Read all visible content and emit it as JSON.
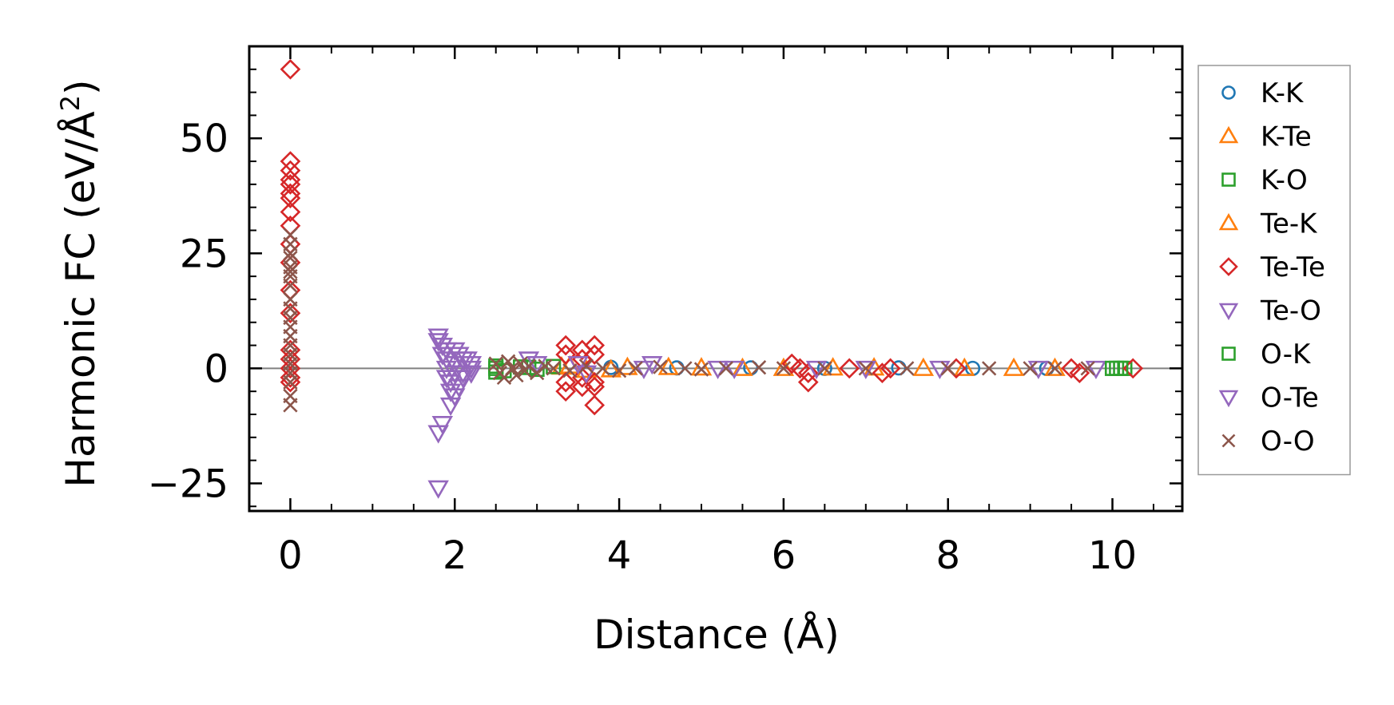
{
  "chart_data": {
    "type": "scatter",
    "title": "",
    "xlabel": "Distance (Å)",
    "ylabel_main": "Harmonic FC (eV/Å",
    "ylabel_sup": "2",
    "ylabel_close": ")",
    "xlim": [
      -0.5,
      10.85
    ],
    "ylim": [
      -31,
      70
    ],
    "xticks": [
      0,
      2,
      4,
      6,
      8,
      10
    ],
    "xtick_labels": [
      "0",
      "2",
      "4",
      "6",
      "8",
      "10"
    ],
    "yticks": [
      -25,
      0,
      25,
      50
    ],
    "ytick_labels": [
      "−25",
      "0",
      "25",
      "50"
    ],
    "zero_line": 0,
    "legend_position": "right, outside axes",
    "series": [
      {
        "name": "K-K",
        "color": "#1f77b4",
        "marker": "circle",
        "points": [
          [
            3.9,
            0.2
          ],
          [
            4.7,
            0.1
          ],
          [
            5.6,
            0.1
          ],
          [
            6.5,
            0.0
          ],
          [
            7.4,
            0.1
          ],
          [
            8.3,
            0.0
          ],
          [
            9.2,
            0.0
          ]
        ]
      },
      {
        "name": "K-Te",
        "color": "#ff7f0e",
        "marker": "triangle-up",
        "points": [
          [
            3.3,
            0.3
          ],
          [
            3.6,
            -0.4
          ],
          [
            4.1,
            0.2
          ],
          [
            5.0,
            0.1
          ],
          [
            6.0,
            0.0
          ],
          [
            7.1,
            0.1
          ],
          [
            8.2,
            0.0
          ],
          [
            9.3,
            0.0
          ]
        ]
      },
      {
        "name": "K-O",
        "color": "#2ca02c",
        "marker": "square",
        "points": [
          [
            2.5,
            0.5
          ],
          [
            2.5,
            -0.8
          ],
          [
            2.8,
            0.3
          ],
          [
            3.0,
            -0.2
          ],
          [
            3.2,
            0.4
          ],
          [
            10.05,
            0.0
          ],
          [
            10.15,
            0.0
          ]
        ]
      },
      {
        "name": "Te-K",
        "color": "#ff7f0e",
        "marker": "triangle-up",
        "points": [
          [
            3.4,
            0.5
          ],
          [
            3.9,
            -0.3
          ],
          [
            4.6,
            0.2
          ],
          [
            5.5,
            0.0
          ],
          [
            6.6,
            0.1
          ],
          [
            7.7,
            0.0
          ],
          [
            8.8,
            0.0
          ]
        ]
      },
      {
        "name": "Te-Te",
        "color": "#d62728",
        "marker": "diamond",
        "points": [
          [
            0,
            65
          ],
          [
            0,
            45
          ],
          [
            0,
            43
          ],
          [
            0,
            41
          ],
          [
            0,
            40
          ],
          [
            0,
            38
          ],
          [
            0,
            37
          ],
          [
            0,
            34
          ],
          [
            0,
            31
          ],
          [
            0,
            27
          ],
          [
            0,
            23
          ],
          [
            0,
            17
          ],
          [
            0,
            12
          ],
          [
            0,
            4
          ],
          [
            0,
            2
          ],
          [
            0,
            0
          ],
          [
            0,
            -2
          ],
          [
            0,
            -3
          ],
          [
            3.35,
            5
          ],
          [
            3.35,
            3
          ],
          [
            3.35,
            -3
          ],
          [
            3.35,
            -5
          ],
          [
            3.55,
            4
          ],
          [
            3.55,
            2
          ],
          [
            3.55,
            -2
          ],
          [
            3.55,
            -4
          ],
          [
            3.7,
            5
          ],
          [
            3.7,
            3
          ],
          [
            3.7,
            -3
          ],
          [
            3.7,
            -4
          ],
          [
            3.7,
            -8
          ],
          [
            6.1,
            1
          ],
          [
            6.2,
            0
          ],
          [
            6.3,
            -1
          ],
          [
            6.3,
            -3
          ],
          [
            6.8,
            0
          ],
          [
            7.2,
            -1
          ],
          [
            7.3,
            0
          ],
          [
            8.1,
            0
          ],
          [
            9.5,
            0
          ],
          [
            9.6,
            -1
          ],
          [
            10.25,
            0
          ]
        ]
      },
      {
        "name": "Te-O",
        "color": "#9467bd",
        "marker": "triangle-down",
        "points": [
          [
            1.8,
            7
          ],
          [
            1.85,
            5
          ],
          [
            1.85,
            3
          ],
          [
            1.9,
            2
          ],
          [
            1.9,
            0
          ],
          [
            1.9,
            -2
          ],
          [
            1.95,
            -5
          ],
          [
            1.95,
            -8
          ],
          [
            1.8,
            -14
          ],
          [
            1.85,
            -12
          ],
          [
            1.8,
            -26
          ],
          [
            2.0,
            4
          ],
          [
            2.0,
            1
          ],
          [
            2.0,
            -1
          ],
          [
            2.05,
            -4
          ],
          [
            2.1,
            2
          ],
          [
            2.1,
            -2
          ],
          [
            2.2,
            0
          ],
          [
            2.2,
            1
          ],
          [
            2.9,
            2
          ],
          [
            3.5,
            1
          ],
          [
            3.6,
            -1
          ],
          [
            4.4,
            1
          ],
          [
            5.4,
            0
          ],
          [
            6.4,
            0
          ],
          [
            7.0,
            0
          ],
          [
            7.9,
            0
          ],
          [
            9.1,
            0
          ],
          [
            9.8,
            0
          ]
        ]
      },
      {
        "name": "O-K",
        "color": "#2ca02c",
        "marker": "square",
        "points": [
          [
            2.5,
            0.0
          ],
          [
            2.6,
            -0.5
          ],
          [
            2.9,
            0.2
          ],
          [
            10.0,
            0.0
          ],
          [
            10.1,
            0.0
          ]
        ]
      },
      {
        "name": "O-Te",
        "color": "#9467bd",
        "marker": "triangle-down",
        "points": [
          [
            1.8,
            6
          ],
          [
            1.9,
            4
          ],
          [
            1.95,
            -3
          ],
          [
            2.0,
            -6
          ],
          [
            2.05,
            3
          ],
          [
            2.1,
            -1
          ],
          [
            2.15,
            2
          ],
          [
            2.2,
            -1
          ],
          [
            3.0,
            1
          ],
          [
            4.3,
            0
          ],
          [
            5.2,
            0
          ]
        ]
      },
      {
        "name": "O-O",
        "color": "#8c564b",
        "marker": "x",
        "points": [
          [
            0,
            29
          ],
          [
            0,
            27
          ],
          [
            0,
            25
          ],
          [
            0,
            24
          ],
          [
            0,
            22
          ],
          [
            0,
            21
          ],
          [
            0,
            20
          ],
          [
            0,
            18
          ],
          [
            0,
            15
          ],
          [
            0,
            13
          ],
          [
            0,
            11
          ],
          [
            0,
            9
          ],
          [
            0,
            7
          ],
          [
            0,
            5
          ],
          [
            0,
            3
          ],
          [
            0,
            1
          ],
          [
            0,
            -1
          ],
          [
            0,
            -3
          ],
          [
            0,
            -6
          ],
          [
            0,
            -8
          ],
          [
            2.5,
            1
          ],
          [
            2.55,
            -1
          ],
          [
            2.6,
            -2
          ],
          [
            2.65,
            1.5
          ],
          [
            2.7,
            0
          ],
          [
            2.75,
            -1.5
          ],
          [
            2.8,
            1
          ],
          [
            2.85,
            -0.5
          ],
          [
            2.9,
            0.5
          ],
          [
            3.0,
            -1
          ],
          [
            3.1,
            0.5
          ],
          [
            3.2,
            0
          ],
          [
            3.4,
            -0.5
          ],
          [
            3.6,
            0.5
          ],
          [
            3.8,
            0
          ],
          [
            4.0,
            -0.5
          ],
          [
            4.2,
            0
          ],
          [
            4.5,
            0.3
          ],
          [
            4.8,
            0
          ],
          [
            5.0,
            -0.2
          ],
          [
            5.3,
            0
          ],
          [
            5.7,
            0.2
          ],
          [
            6.0,
            0
          ],
          [
            6.5,
            0
          ],
          [
            7.0,
            0
          ],
          [
            7.5,
            0
          ],
          [
            8.0,
            0
          ],
          [
            8.5,
            0
          ],
          [
            9.0,
            0
          ],
          [
            9.3,
            0
          ],
          [
            9.7,
            0
          ]
        ]
      }
    ]
  }
}
